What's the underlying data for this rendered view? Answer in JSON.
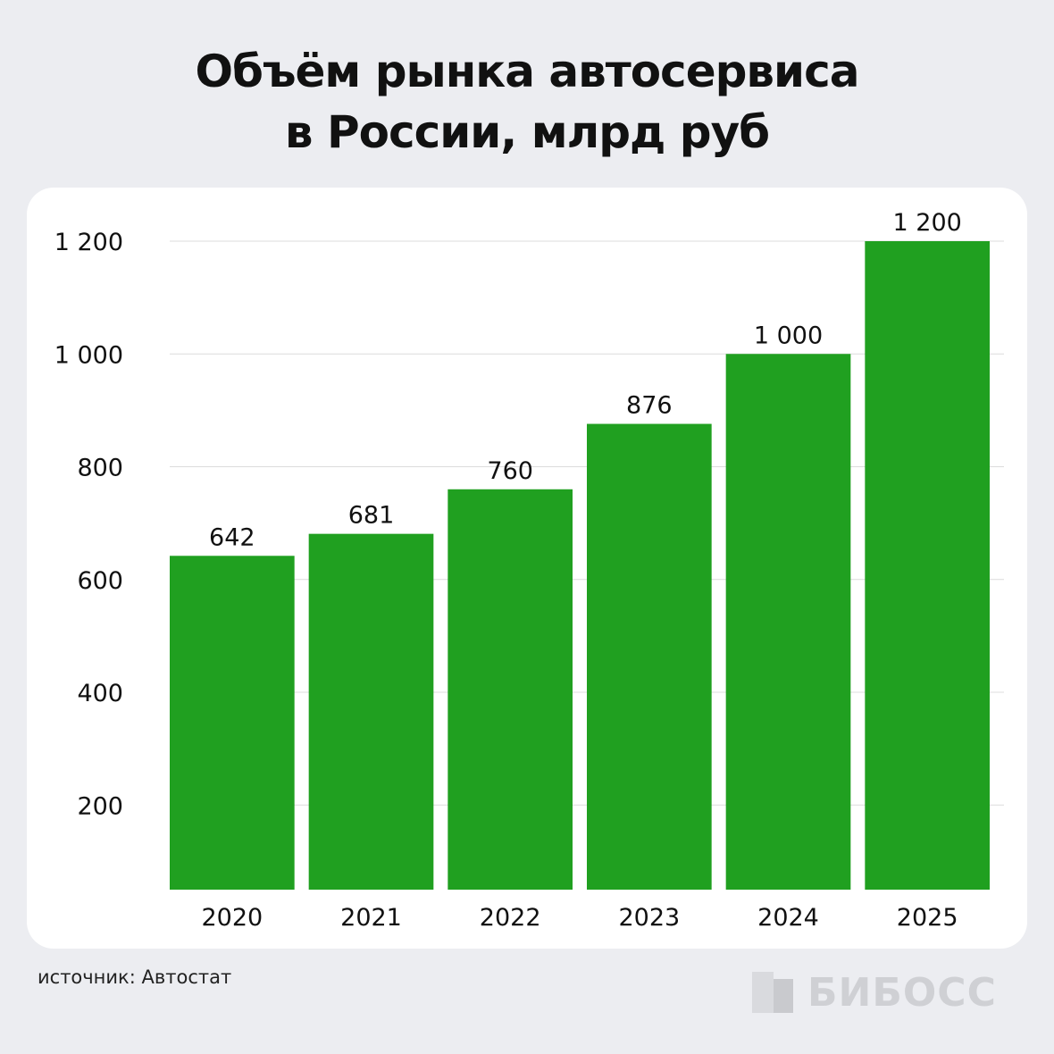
{
  "header": {
    "title_line1": "Объём рынка автосервиса",
    "title_line2": "в России, млрд руб"
  },
  "footer": {
    "source": "источник: Автостат",
    "brand": "БИБОСС"
  },
  "colors": {
    "bar": "#20a020",
    "grid": "#dcdcdc",
    "text": "#111111",
    "background": "#ecedf1",
    "card": "#ffffff"
  },
  "chart_data": {
    "type": "bar",
    "categories": [
      "2020",
      "2021",
      "2022",
      "2023",
      "2024",
      "2025"
    ],
    "values": [
      642,
      681,
      760,
      876,
      1000,
      1200
    ],
    "value_labels": [
      "642",
      "681",
      "760",
      "876",
      "1 000",
      "1 200"
    ],
    "yticks": [
      200,
      400,
      600,
      800,
      1000,
      1200
    ],
    "ytick_labels": [
      "200",
      "400",
      "600",
      "800",
      "1 000",
      "1 200"
    ],
    "ylim": [
      50,
      1200
    ],
    "grid": true,
    "legend": "none"
  }
}
